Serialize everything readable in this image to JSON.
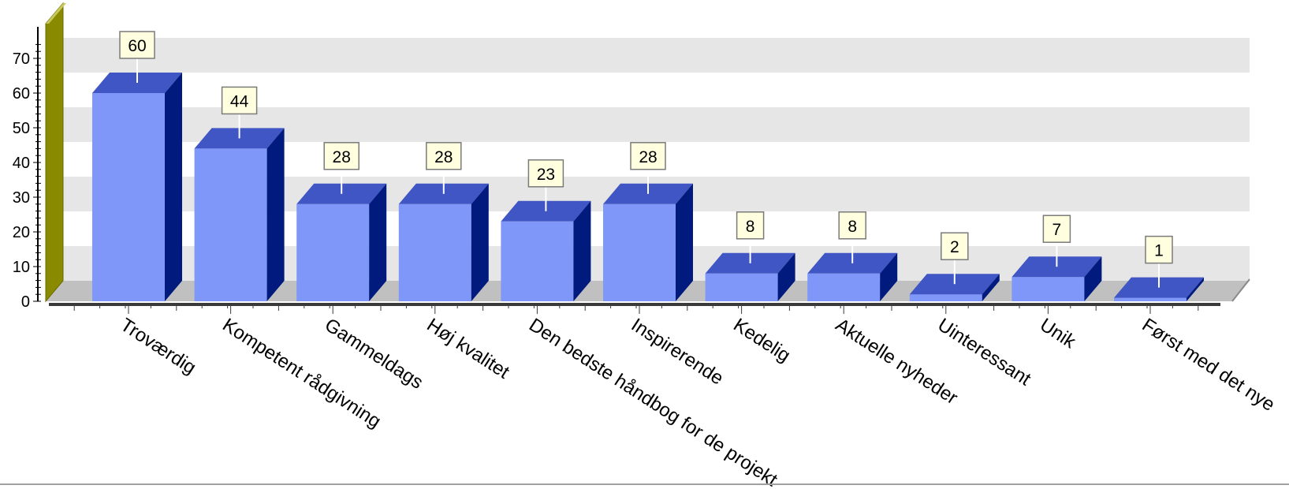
{
  "chart_data": {
    "type": "bar",
    "title": "",
    "xlabel": "",
    "ylabel": "",
    "categories": [
      "Troværdig",
      "Kompetent rådgivning",
      "Gammeldags",
      "Høj kvalitet",
      "Den bedste håndbog for de projekt",
      "Inspirerende",
      "Kedelig",
      "Aktuelle nyheder",
      "Uinteressant",
      "Unik",
      "Først med det nye"
    ],
    "values": [
      60,
      44,
      28,
      28,
      23,
      28,
      8,
      8,
      2,
      7,
      1
    ],
    "ylim": [
      0,
      70
    ],
    "yticks": [
      "0",
      "10",
      "20",
      "30",
      "40",
      "50",
      "60",
      "70"
    ],
    "grid": true,
    "style": "3d"
  },
  "colors": {
    "bar_front": "#7f97f8",
    "bar_top": "#3f56c4",
    "bar_side": "#001a7d",
    "wall": "#8a8a00",
    "floor": "#c0c0c0",
    "grid_band": "#e6e6e6",
    "label_bg": "#ffffe0"
  }
}
